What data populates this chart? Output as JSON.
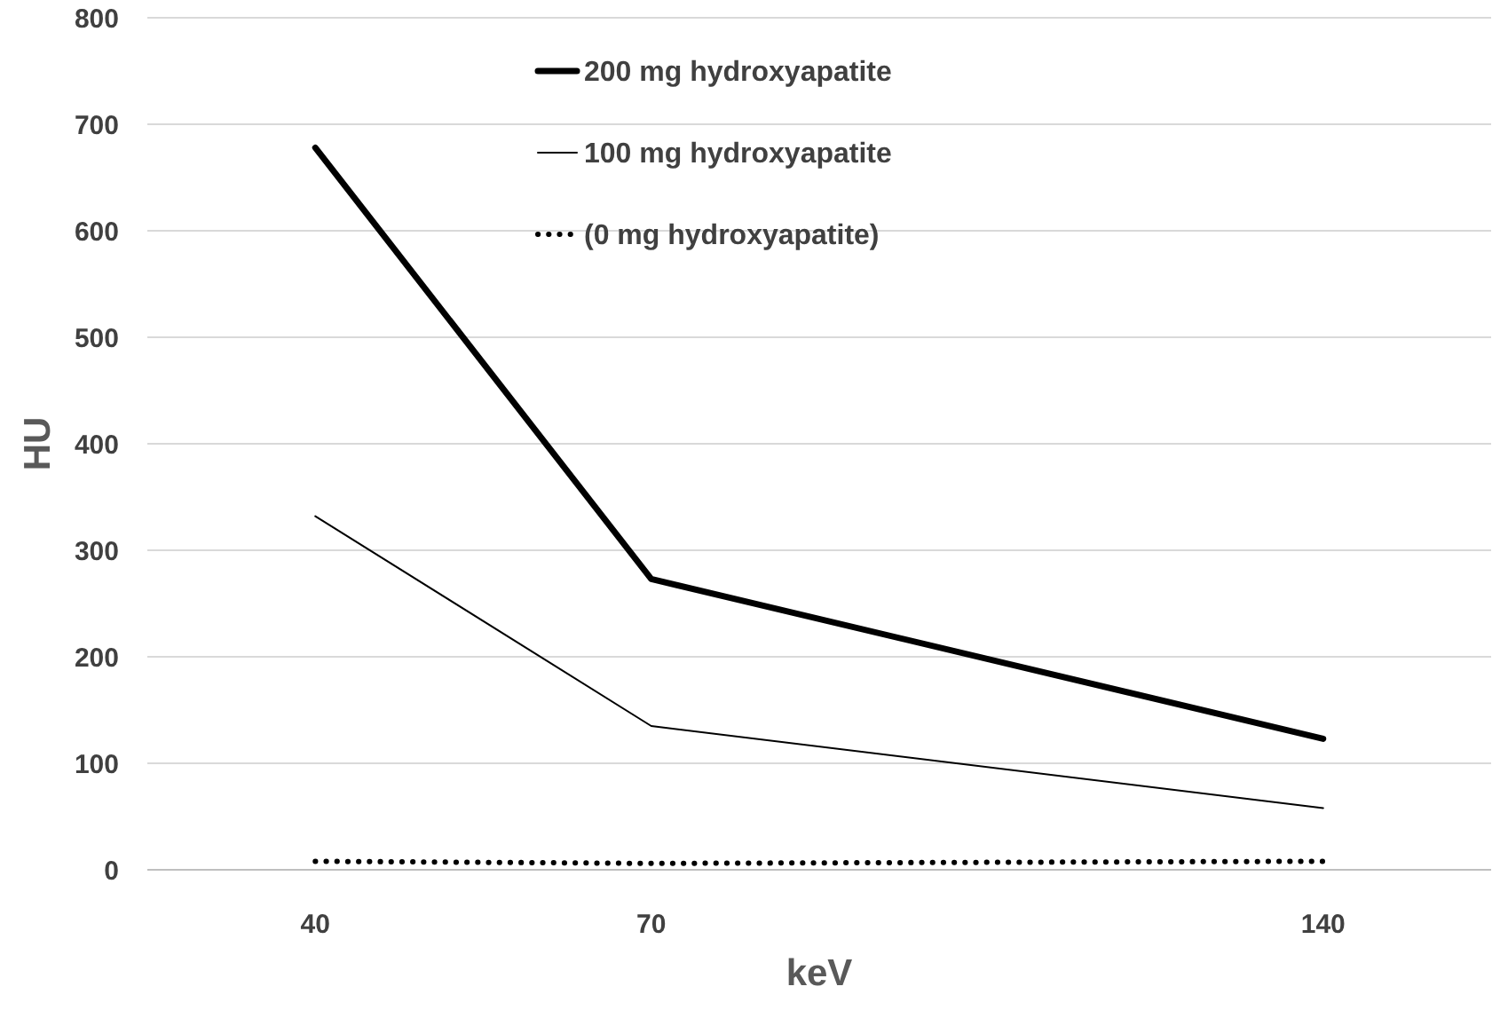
{
  "chart_data": {
    "type": "line",
    "xlabel": "keV",
    "ylabel": "HU",
    "categories": [
      "40",
      "70",
      null,
      "140"
    ],
    "series": [
      {
        "name": "200 mg hydroxyapatite",
        "color": "#000000",
        "values": [
          678,
          273,
          null,
          123
        ],
        "line_style": "solid"
      },
      {
        "name": "100 mg hydroxyapatite",
        "color": "#000000",
        "values": [
          332,
          135,
          null,
          58
        ],
        "line_style": "solid"
      },
      {
        "name": "(0 mg hydroxyapatite)",
        "color": "#000000",
        "values": [
          8,
          6,
          null,
          8
        ],
        "line_style": "dotted"
      }
    ],
    "ylim": [
      0,
      800
    ],
    "yticks": [
      0,
      100,
      200,
      300,
      400,
      500,
      600,
      700,
      800
    ],
    "grid": "y",
    "legend": "top",
    "marker": "none"
  }
}
